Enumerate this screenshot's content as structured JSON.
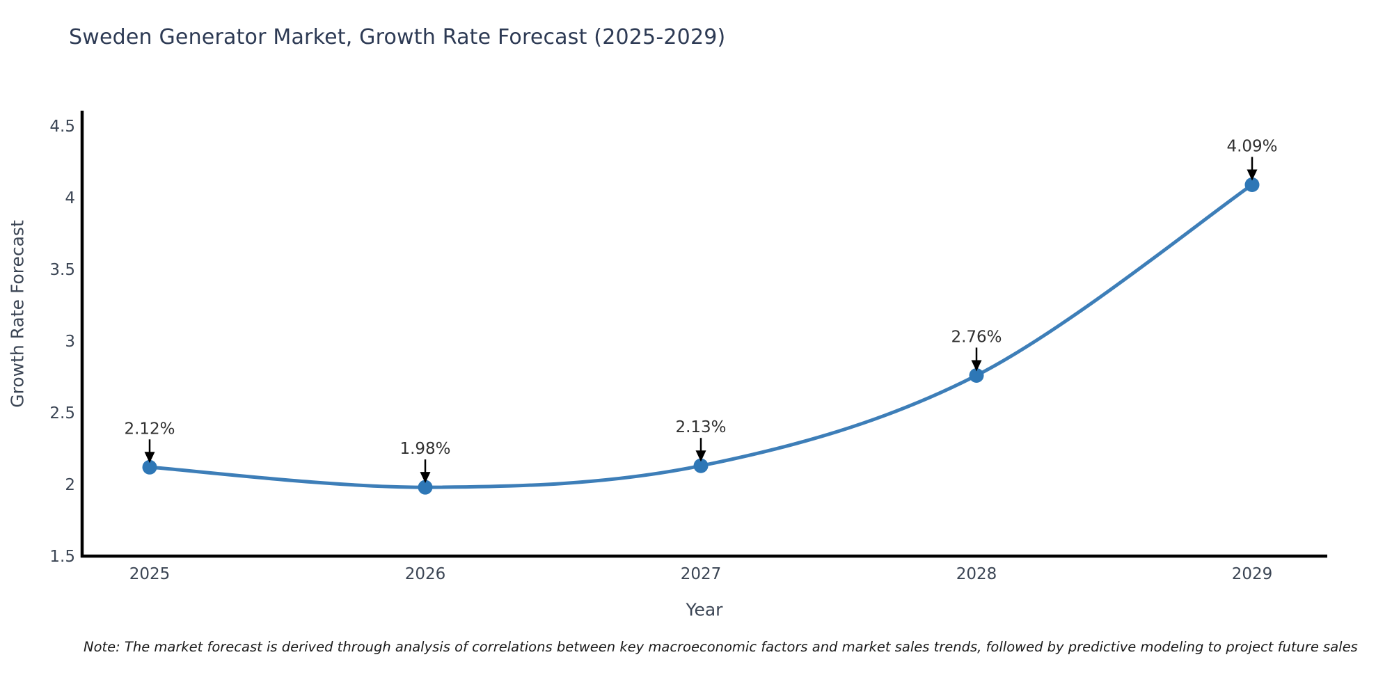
{
  "title": "Sweden Generator Market, Growth Rate Forecast (2025-2029)",
  "note": "Note: The market forecast is derived through analysis of correlations between key macroeconomic factors and market sales trends, followed by predictive modeling to project future sales",
  "chart_data": {
    "type": "line",
    "title": "Sweden Generator Market, Growth Rate Forecast (2025-2029)",
    "xlabel": "Year",
    "ylabel": "Growth Rate Forecast",
    "x": [
      "2025",
      "2026",
      "2027",
      "2028",
      "2029"
    ],
    "series": [
      {
        "name": "Growth Rate Forecast",
        "values": [
          2.12,
          1.98,
          2.13,
          2.76,
          4.09
        ]
      }
    ],
    "point_labels": [
      "2.12%",
      "1.98%",
      "2.13%",
      "2.76%",
      "4.09%"
    ],
    "ylim": [
      1.5,
      4.5
    ],
    "yticks": [
      "1.5",
      "2",
      "2.5",
      "3",
      "3.5",
      "4",
      "4.5"
    ],
    "grid": false,
    "legend": "none",
    "smooth_curve": true,
    "colors": {
      "line": "#3d7eb8",
      "marker": "#2e77b6",
      "axis": "#000000",
      "tick_label": "#3b4554",
      "annotation_text": "#303030",
      "annotation_arrow": "#000000"
    }
  }
}
